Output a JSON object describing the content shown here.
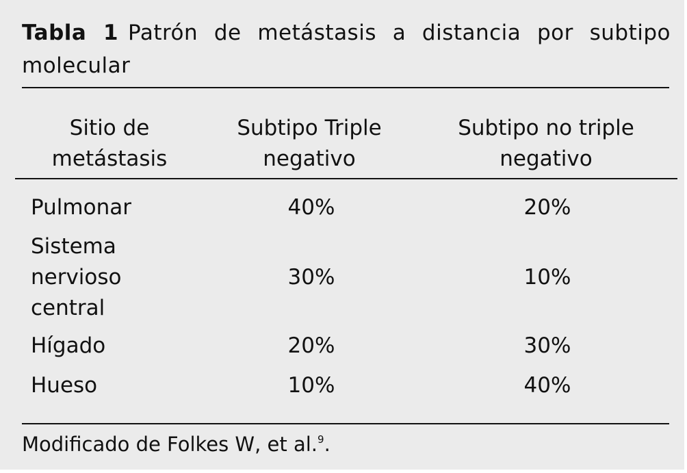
{
  "caption": {
    "label": "Tabla 1",
    "title": "Patrón de metástasis a distancia por subtipo molecular"
  },
  "table": {
    "header": [
      "Sitio de metástasis",
      "Subtipo Triple negativo",
      "Subtipo no triple negativo"
    ],
    "rows": [
      [
        "Pulmonar",
        "40%",
        "20%"
      ],
      [
        "Sistema nervioso central",
        "30%",
        "10%"
      ],
      [
        "Hígado",
        "20%",
        "30%"
      ],
      [
        "Hueso",
        "10%",
        "40%"
      ]
    ]
  },
  "footnote": {
    "text": "Modificado de Folkes W, et al.",
    "ref": "9"
  }
}
